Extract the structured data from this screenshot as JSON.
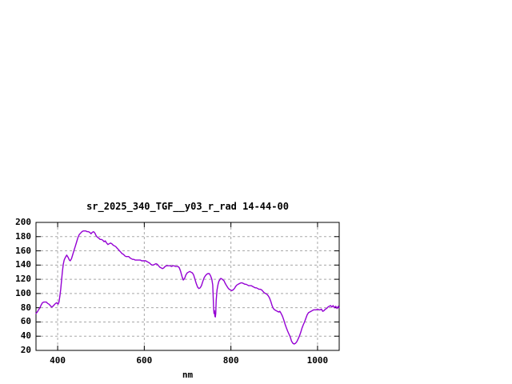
{
  "title": "sr_2025_340_TGF__y03_r_rad 14-44-00",
  "colors": {
    "background": "#ffffff",
    "curve": "#9400d3",
    "grid": "#a8a8a8",
    "axis": "#000000"
  },
  "chart_data": {
    "type": "line",
    "title": "sr_2025_340_TGF__y03_r_rad 14-44-00",
    "xlabel": "nm",
    "ylabel": "",
    "xlim": [
      350,
      1050
    ],
    "ylim": [
      20,
      200
    ],
    "x_ticks": [
      400,
      600,
      800,
      1000
    ],
    "y_ticks": [
      20,
      40,
      60,
      80,
      100,
      120,
      140,
      160,
      180,
      200
    ],
    "grid": true,
    "legend_position": "none",
    "series": [
      {
        "name": "sr_2025_340_TGF__y03_r_rad",
        "color": "#9400d3",
        "points": [
          [
            350,
            72
          ],
          [
            353,
            74
          ],
          [
            356,
            77
          ],
          [
            359,
            80
          ],
          [
            362,
            84
          ],
          [
            365,
            87
          ],
          [
            368,
            88
          ],
          [
            371,
            88
          ],
          [
            374,
            88
          ],
          [
            377,
            86
          ],
          [
            380,
            85
          ],
          [
            383,
            83
          ],
          [
            386,
            81
          ],
          [
            389,
            82
          ],
          [
            392,
            84
          ],
          [
            395,
            86
          ],
          [
            398,
            87
          ],
          [
            401,
            85
          ],
          [
            403,
            88
          ],
          [
            405,
            96
          ],
          [
            407,
            106
          ],
          [
            409,
            118
          ],
          [
            411,
            131
          ],
          [
            413,
            141
          ],
          [
            415,
            147
          ],
          [
            418,
            151
          ],
          [
            421,
            154
          ],
          [
            424,
            151
          ],
          [
            427,
            147
          ],
          [
            429,
            146
          ],
          [
            432,
            149
          ],
          [
            435,
            155
          ],
          [
            438,
            161
          ],
          [
            441,
            167
          ],
          [
            444,
            173
          ],
          [
            447,
            179
          ],
          [
            450,
            183
          ],
          [
            453,
            185
          ],
          [
            456,
            187
          ],
          [
            459,
            188
          ],
          [
            462,
            188
          ],
          [
            465,
            188
          ],
          [
            468,
            187
          ],
          [
            471,
            187
          ],
          [
            474,
            186
          ],
          [
            477,
            184
          ],
          [
            480,
            186
          ],
          [
            483,
            187
          ],
          [
            486,
            185
          ],
          [
            489,
            181
          ],
          [
            492,
            179
          ],
          [
            495,
            178
          ],
          [
            498,
            176
          ],
          [
            501,
            176
          ],
          [
            504,
            175
          ],
          [
            507,
            173
          ],
          [
            510,
            174
          ],
          [
            513,
            171
          ],
          [
            516,
            169
          ],
          [
            519,
            170
          ],
          [
            522,
            171
          ],
          [
            525,
            170
          ],
          [
            528,
            168
          ],
          [
            531,
            167
          ],
          [
            534,
            166
          ],
          [
            537,
            164
          ],
          [
            540,
            162
          ],
          [
            543,
            160
          ],
          [
            546,
            158
          ],
          [
            549,
            156
          ],
          [
            552,
            155
          ],
          [
            555,
            153
          ],
          [
            558,
            152
          ],
          [
            561,
            152
          ],
          [
            564,
            152
          ],
          [
            567,
            150
          ],
          [
            570,
            149
          ],
          [
            573,
            148
          ],
          [
            576,
            148
          ],
          [
            579,
            147
          ],
          [
            582,
            147
          ],
          [
            585,
            147
          ],
          [
            588,
            147
          ],
          [
            591,
            147
          ],
          [
            594,
            146
          ],
          [
            597,
            146
          ],
          [
            600,
            146
          ],
          [
            603,
            146
          ],
          [
            606,
            145
          ],
          [
            609,
            144
          ],
          [
            612,
            143
          ],
          [
            615,
            141
          ],
          [
            618,
            140
          ],
          [
            621,
            140
          ],
          [
            624,
            141
          ],
          [
            627,
            142
          ],
          [
            630,
            141
          ],
          [
            633,
            139
          ],
          [
            636,
            137
          ],
          [
            639,
            136
          ],
          [
            642,
            135
          ],
          [
            645,
            136
          ],
          [
            648,
            138
          ],
          [
            651,
            139
          ],
          [
            654,
            139
          ],
          [
            657,
            139
          ],
          [
            660,
            139
          ],
          [
            663,
            138
          ],
          [
            666,
            139
          ],
          [
            669,
            139
          ],
          [
            672,
            138
          ],
          [
            675,
            138
          ],
          [
            678,
            138
          ],
          [
            681,
            136
          ],
          [
            684,
            131
          ],
          [
            687,
            124
          ],
          [
            690,
            119
          ],
          [
            693,
            121
          ],
          [
            696,
            126
          ],
          [
            699,
            129
          ],
          [
            702,
            130
          ],
          [
            705,
            131
          ],
          [
            708,
            130
          ],
          [
            711,
            129
          ],
          [
            714,
            126
          ],
          [
            717,
            120
          ],
          [
            720,
            114
          ],
          [
            723,
            109
          ],
          [
            726,
            107
          ],
          [
            729,
            108
          ],
          [
            732,
            111
          ],
          [
            735,
            117
          ],
          [
            738,
            122
          ],
          [
            741,
            125
          ],
          [
            744,
            127
          ],
          [
            747,
            128
          ],
          [
            750,
            128
          ],
          [
            753,
            125
          ],
          [
            756,
            120
          ],
          [
            758,
            112
          ],
          [
            759,
            98
          ],
          [
            760,
            80
          ],
          [
            761,
            72
          ],
          [
            762,
            76
          ],
          [
            763,
            68
          ],
          [
            764,
            67
          ],
          [
            765,
            72
          ],
          [
            766,
            90
          ],
          [
            768,
            105
          ],
          [
            770,
            112
          ],
          [
            772,
            117
          ],
          [
            774,
            119
          ],
          [
            776,
            121
          ],
          [
            778,
            121
          ],
          [
            780,
            120
          ],
          [
            782,
            119
          ],
          [
            784,
            118
          ],
          [
            787,
            114
          ],
          [
            790,
            111
          ],
          [
            793,
            108
          ],
          [
            796,
            106
          ],
          [
            799,
            105
          ],
          [
            802,
            104
          ],
          [
            805,
            105
          ],
          [
            808,
            107
          ],
          [
            811,
            110
          ],
          [
            814,
            112
          ],
          [
            817,
            113
          ],
          [
            820,
            114
          ],
          [
            823,
            115
          ],
          [
            826,
            115
          ],
          [
            829,
            114
          ],
          [
            832,
            113
          ],
          [
            835,
            113
          ],
          [
            838,
            112
          ],
          [
            841,
            111
          ],
          [
            844,
            111
          ],
          [
            847,
            111
          ],
          [
            850,
            110
          ],
          [
            853,
            109
          ],
          [
            856,
            108
          ],
          [
            859,
            108
          ],
          [
            862,
            107
          ],
          [
            865,
            106
          ],
          [
            868,
            106
          ],
          [
            871,
            105
          ],
          [
            874,
            103
          ],
          [
            877,
            101
          ],
          [
            880,
            100
          ],
          [
            883,
            99
          ],
          [
            886,
            97
          ],
          [
            889,
            94
          ],
          [
            892,
            89
          ],
          [
            895,
            83
          ],
          [
            898,
            79
          ],
          [
            901,
            77
          ],
          [
            904,
            76
          ],
          [
            907,
            75
          ],
          [
            910,
            74
          ],
          [
            913,
            75
          ],
          [
            916,
            72
          ],
          [
            919,
            68
          ],
          [
            922,
            63
          ],
          [
            925,
            57
          ],
          [
            928,
            52
          ],
          [
            931,
            47
          ],
          [
            934,
            43
          ],
          [
            937,
            39
          ],
          [
            940,
            33
          ],
          [
            943,
            30
          ],
          [
            946,
            29
          ],
          [
            949,
            30
          ],
          [
            952,
            32
          ],
          [
            955,
            36
          ],
          [
            958,
            40
          ],
          [
            961,
            45
          ],
          [
            964,
            51
          ],
          [
            967,
            56
          ],
          [
            970,
            60
          ],
          [
            973,
            65
          ],
          [
            976,
            70
          ],
          [
            979,
            73
          ],
          [
            982,
            74
          ],
          [
            985,
            75
          ],
          [
            988,
            76
          ],
          [
            991,
            77
          ],
          [
            994,
            77
          ],
          [
            997,
            77
          ],
          [
            1000,
            78
          ],
          [
            1003,
            77
          ],
          [
            1006,
            77
          ],
          [
            1009,
            78
          ],
          [
            1012,
            75
          ],
          [
            1015,
            76
          ],
          [
            1018,
            78
          ],
          [
            1021,
            79
          ],
          [
            1024,
            81
          ],
          [
            1027,
            82
          ],
          [
            1030,
            83
          ],
          [
            1033,
            81
          ],
          [
            1036,
            83
          ],
          [
            1039,
            80
          ],
          [
            1042,
            82
          ],
          [
            1045,
            79
          ],
          [
            1048,
            82
          ],
          [
            1050,
            80
          ]
        ]
      }
    ]
  }
}
